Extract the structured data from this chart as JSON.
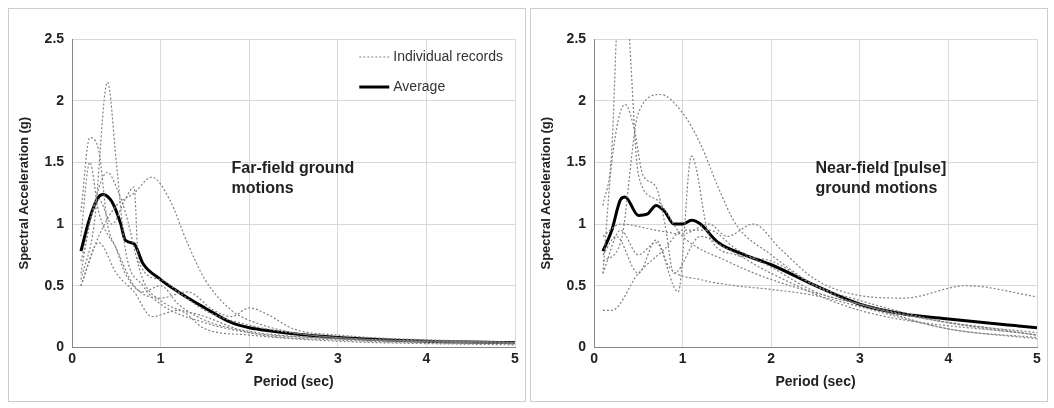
{
  "chart_data": [
    {
      "type": "line",
      "xlabel": "Period (sec)",
      "ylabel": "Spectral Acceleration (g)",
      "annotations": [
        "Far-field ground motions"
      ],
      "xlim": [
        0,
        5
      ],
      "xticks": [
        0,
        1,
        2,
        3,
        4,
        5
      ],
      "ylim": [
        0,
        2.5
      ],
      "yticks": [
        0,
        0.5,
        1,
        1.5,
        2,
        2.5
      ],
      "grid": true,
      "legend": "top right",
      "marker": "none",
      "series": [
        {
          "name": "Individual records",
          "color": "#808080",
          "line_style": "dotted",
          "x": [
            0.1,
            0.25,
            0.4,
            0.5,
            0.6,
            0.8,
            1.0,
            1.5,
            2,
            3,
            5
          ],
          "values": [
            0.55,
            1.0,
            2.15,
            1.5,
            0.8,
            0.5,
            0.35,
            0.2,
            0.12,
            0.07,
            0.03
          ]
        },
        {
          "color": "#808080",
          "line_style": "dotted",
          "x": [
            0.1,
            0.2,
            0.3,
            0.4,
            0.5,
            0.6,
            0.8,
            1.0,
            1.2,
            1.5,
            2,
            3,
            5
          ],
          "values": [
            1.1,
            1.7,
            1.6,
            1.0,
            0.8,
            0.6,
            0.45,
            0.5,
            0.35,
            0.22,
            0.13,
            0.07,
            0.03
          ]
        },
        {
          "color": "#808080",
          "line_style": "dotted",
          "x": [
            0.1,
            0.3,
            0.5,
            0.7,
            0.9,
            1.1,
            1.3,
            1.5,
            1.8,
            2,
            2.5,
            3,
            5
          ],
          "values": [
            0.5,
            0.9,
            1.15,
            1.25,
            1.38,
            1.2,
            0.85,
            0.55,
            0.3,
            0.22,
            0.12,
            0.08,
            0.04
          ]
        },
        {
          "color": "#808080",
          "line_style": "dotted",
          "x": [
            0.1,
            0.2,
            0.4,
            0.5,
            0.6,
            0.8,
            1.0,
            1.5,
            2,
            3,
            5
          ],
          "values": [
            0.6,
            1.0,
            1.42,
            1.3,
            1.1,
            0.55,
            0.38,
            0.25,
            0.12,
            0.06,
            0.03
          ]
        },
        {
          "color": "#808080",
          "line_style": "dotted",
          "x": [
            0.1,
            0.3,
            0.45,
            0.6,
            0.7,
            0.75,
            1.0,
            1.2,
            1.5,
            2,
            3,
            5
          ],
          "values": [
            0.7,
            1.2,
            1.0,
            1.2,
            1.3,
            0.7,
            0.55,
            0.45,
            0.3,
            0.18,
            0.08,
            0.04
          ]
        },
        {
          "color": "#808080",
          "line_style": "dotted",
          "x": [
            0.1,
            0.2,
            0.3,
            0.5,
            0.7,
            1.0,
            1.3,
            1.6,
            1.8,
            2.0,
            2.2,
            2.5,
            3,
            5
          ],
          "values": [
            0.9,
            1.5,
            1.1,
            0.8,
            0.5,
            0.4,
            0.45,
            0.3,
            0.25,
            0.32,
            0.27,
            0.15,
            0.1,
            0.04
          ]
        },
        {
          "color": "#808080",
          "line_style": "dotted",
          "x": [
            0.1,
            0.3,
            0.5,
            0.7,
            0.9,
            1.2,
            1.5,
            2,
            3,
            5
          ],
          "values": [
            0.5,
            0.85,
            0.6,
            0.45,
            0.25,
            0.3,
            0.15,
            0.1,
            0.05,
            0.02
          ]
        },
        {
          "name": "Average",
          "color": "#000000",
          "line_style": "solid",
          "x": [
            0.1,
            0.2,
            0.3,
            0.35,
            0.45,
            0.55,
            0.6,
            0.7,
            0.8,
            1.0,
            1.2,
            1.5,
            1.8,
            2,
            2.5,
            3,
            4,
            5
          ],
          "values": [
            0.78,
            1.05,
            1.22,
            1.24,
            1.18,
            1.0,
            0.87,
            0.84,
            0.68,
            0.55,
            0.45,
            0.32,
            0.2,
            0.16,
            0.11,
            0.08,
            0.05,
            0.04
          ]
        }
      ]
    },
    {
      "type": "line",
      "xlabel": "Period (sec)",
      "ylabel": "Spectral Acceleration (g)",
      "annotations": [
        "Near-field [pulse] ground motions"
      ],
      "xlim": [
        0,
        5
      ],
      "xticks": [
        0,
        1,
        2,
        3,
        4,
        5
      ],
      "ylim": [
        0,
        2.5
      ],
      "yticks": [
        0,
        0.5,
        1,
        1.5,
        2,
        2.5
      ],
      "grid": true,
      "marker": "none",
      "series": [
        {
          "color": "#808080",
          "line_style": "dotted",
          "x": [
            0.1,
            0.2,
            0.25,
            0.3,
            0.4,
            0.5,
            0.7,
            1.0,
            1.5,
            2,
            3,
            4,
            5
          ],
          "values": [
            1.15,
            1.6,
            2.5,
            null,
            2.5,
            1.4,
            1.2,
            0.9,
            0.7,
            0.55,
            0.35,
            0.2,
            0.12
          ]
        },
        {
          "color": "#808080",
          "line_style": "dotted",
          "x": [
            0.1,
            0.2,
            0.35,
            0.45,
            0.55,
            0.7,
            0.8,
            0.9,
            1.2,
            1.5,
            2,
            3,
            5
          ],
          "values": [
            0.6,
            1.5,
            1.97,
            1.78,
            1.4,
            1.3,
            1.0,
            0.6,
            0.9,
            0.8,
            0.6,
            0.3,
            0.1
          ]
        },
        {
          "color": "#808080",
          "line_style": "dotted",
          "x": [
            0.1,
            0.3,
            0.5,
            0.75,
            1.0,
            1.2,
            1.4,
            1.6,
            2,
            2.5,
            3,
            5
          ],
          "values": [
            0.7,
            0.85,
            1.9,
            2.05,
            1.9,
            1.65,
            1.3,
            1.0,
            0.75,
            0.5,
            0.35,
            0.1
          ]
        },
        {
          "color": "#808080",
          "line_style": "dotted",
          "x": [
            0.1,
            0.3,
            0.5,
            0.7,
            0.95,
            1.1,
            1.3,
            1.6,
            2.0,
            2.5,
            3.0,
            4,
            5
          ],
          "values": [
            0.6,
            0.95,
            0.75,
            0.85,
            0.45,
            1.55,
            0.9,
            0.75,
            0.7,
            0.5,
            0.38,
            0.2,
            0.1
          ]
        },
        {
          "color": "#808080",
          "line_style": "dotted",
          "x": [
            0.1,
            0.3,
            0.7,
            1.0,
            1.3,
            1.5,
            1.8,
            2.1,
            2.5,
            3,
            3.5,
            4.2,
            5
          ],
          "values": [
            0.9,
            1.0,
            0.95,
            0.92,
            1.0,
            0.9,
            1.0,
            0.8,
            0.55,
            0.42,
            0.4,
            0.5,
            0.41
          ]
        },
        {
          "color": "#808080",
          "line_style": "dotted",
          "x": [
            0.1,
            0.2,
            0.5,
            0.8,
            1.0,
            1.3,
            1.6,
            2.0,
            2.5,
            3.0,
            4,
            5
          ],
          "values": [
            0.3,
            0.3,
            0.6,
            0.8,
            0.95,
            0.95,
            0.8,
            0.65,
            0.45,
            0.35,
            0.15,
            0.08
          ]
        },
        {
          "color": "#808080",
          "line_style": "dotted",
          "x": [
            0.1,
            0.25,
            0.5,
            0.7,
            0.85,
            1.2,
            1.6,
            2,
            2.5,
            3,
            4,
            5
          ],
          "values": [
            0.75,
            0.9,
            0.6,
            0.87,
            0.65,
            0.55,
            0.5,
            0.47,
            0.42,
            0.33,
            0.15,
            0.07
          ]
        },
        {
          "color": "#000000",
          "line_style": "solid",
          "x": [
            0.1,
            0.2,
            0.3,
            0.35,
            0.5,
            0.6,
            0.7,
            0.8,
            0.9,
            1.0,
            1.1,
            1.2,
            1.4,
            1.7,
            2.0,
            2.5,
            3.0,
            3.5,
            4,
            5
          ],
          "values": [
            0.78,
            0.95,
            1.2,
            1.22,
            1.07,
            1.08,
            1.15,
            1.1,
            1.0,
            1.0,
            1.03,
            1.0,
            0.85,
            0.75,
            0.67,
            0.5,
            0.35,
            0.27,
            0.23,
            0.16
          ]
        }
      ]
    }
  ]
}
